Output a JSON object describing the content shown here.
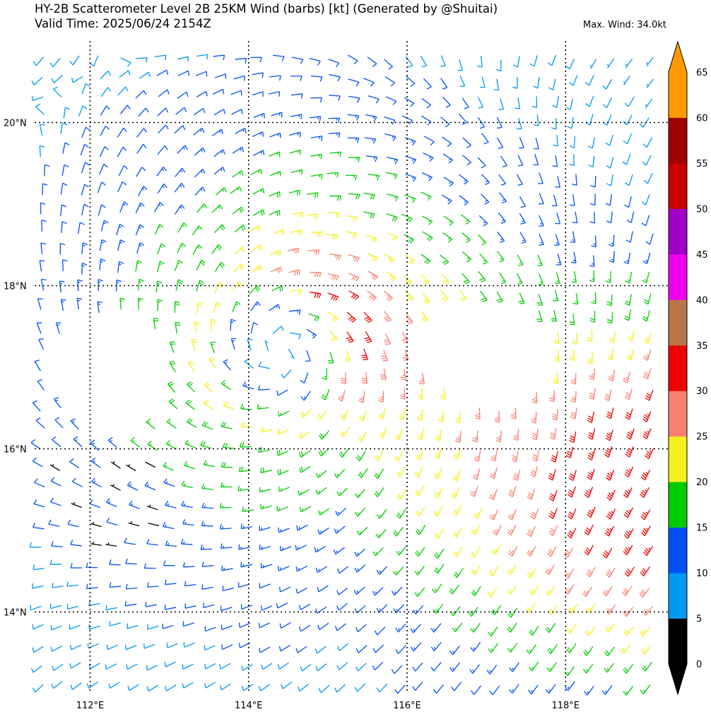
{
  "header": {
    "title": "HY-2B Scatterometer Level 2B 25KM Wind (barbs) [kt] (Generated by @Shuitai)",
    "valid_time": "Valid Time: 2025/06/24 2154Z",
    "max_wind": "Max. Wind: 34.0kt"
  },
  "chart_data": {
    "type": "wind-barb map",
    "x_axis": {
      "ticks": [
        112,
        114,
        116,
        118
      ],
      "tick_labels": [
        "112°E",
        "114°E",
        "116°E",
        "118°E"
      ],
      "range": [
        111.3,
        119.3
      ]
    },
    "y_axis": {
      "ticks": [
        14,
        16,
        18,
        20
      ],
      "tick_labels": [
        "14°N",
        "16°N",
        "18°N",
        "20°N"
      ],
      "range": [
        13.0,
        21.0
      ]
    },
    "grid": true,
    "grid_style": "dotted",
    "storm_center_approx": {
      "lon": 114.4,
      "lat": 17.2
    },
    "max_wind_kt": 34.0,
    "colorbar": {
      "levels": [
        0,
        5,
        10,
        15,
        20,
        25,
        30,
        35,
        40,
        45,
        50,
        55,
        60,
        65
      ],
      "labels": [
        "0",
        "5",
        "10",
        "15",
        "20",
        "25",
        "30",
        "35",
        "40",
        "45",
        "50",
        "55",
        "60",
        "65"
      ],
      "colors": [
        "#000000",
        "#0099f0",
        "#0050f5",
        "#00cc00",
        "#f5f020",
        "#f88070",
        "#f00000",
        "#b87848",
        "#f000f0",
        "#a000c8",
        "#c80000",
        "#a00000",
        "#ff9900"
      ],
      "extend": "both"
    }
  }
}
